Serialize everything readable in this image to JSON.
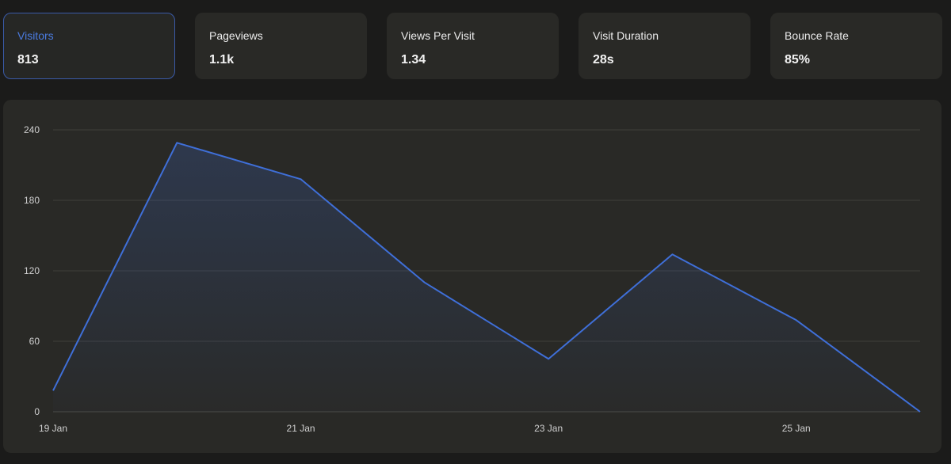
{
  "metrics": [
    {
      "label": "Visitors",
      "value": "813",
      "active": true
    },
    {
      "label": "Pageviews",
      "value": "1.1k",
      "active": false
    },
    {
      "label": "Views Per Visit",
      "value": "1.34",
      "active": false
    },
    {
      "label": "Visit Duration",
      "value": "28s",
      "active": false
    },
    {
      "label": "Bounce Rate",
      "value": "85%",
      "active": false
    }
  ],
  "colors": {
    "accent": "#3f6fd8",
    "grid": "#3e3e3b",
    "card_bg": "#292926"
  },
  "chart_data": {
    "type": "area",
    "title": "",
    "xlabel": "",
    "ylabel": "",
    "x": [
      "19 Jan",
      "20 Jan",
      "21 Jan",
      "22 Jan",
      "23 Jan",
      "24 Jan",
      "25 Jan",
      "26 Jan"
    ],
    "x_tick_labels": [
      "19 Jan",
      "21 Jan",
      "23 Jan",
      "25 Jan"
    ],
    "series": [
      {
        "name": "Visitors",
        "values": [
          18,
          229,
          198,
          110,
          45,
          134,
          78,
          0
        ]
      }
    ],
    "ylim": [
      0,
      240
    ],
    "y_ticks": [
      0,
      60,
      120,
      180,
      240
    ],
    "grid": true
  }
}
